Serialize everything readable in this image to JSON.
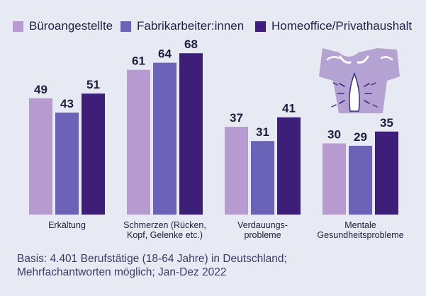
{
  "colors": {
    "background": "#e8eaf3",
    "series": [
      "#b79ad0",
      "#6a63b8",
      "#3d1e79"
    ],
    "text": "#1f1c3d",
    "icon_fill": "#b4a3d2",
    "icon_accent": "#3e2b86"
  },
  "chart_data": {
    "type": "bar",
    "title": "",
    "xlabel": "",
    "ylabel": "",
    "ylim": [
      0,
      75
    ],
    "grid": false,
    "legend_position": "top",
    "categories": [
      "Erkältung",
      "Schmerzen (Rücken, Kopf, Gelenke etc.)",
      "Verdauungs-probleme",
      "Mentale Gesundheitsprobleme"
    ],
    "category_lines": [
      [
        "Erkältung"
      ],
      [
        "Schmerzen (Rücken,",
        "Kopf, Gelenke etc.)"
      ],
      [
        "Verdauungs-",
        "probleme"
      ],
      [
        "Mentale",
        "Gesundheitsprobleme"
      ]
    ],
    "series": [
      {
        "name": "Büroangestellte",
        "values": [
          49,
          61,
          37,
          30
        ]
      },
      {
        "name": "Fabrikarbeiter:innen",
        "values": [
          43,
          64,
          31,
          29
        ]
      },
      {
        "name": "Homeoffice/Privathaushalt",
        "values": [
          51,
          68,
          41,
          35
        ]
      }
    ]
  },
  "illustration": {
    "icon": "back-pain-torso-icon"
  },
  "footnote": {
    "line1": "Basis: 4.401 Berufstätige (18-64 Jahre) in Deutschland;",
    "line2": "Mehrfachantworten möglich; Jan-Dez 2022"
  }
}
